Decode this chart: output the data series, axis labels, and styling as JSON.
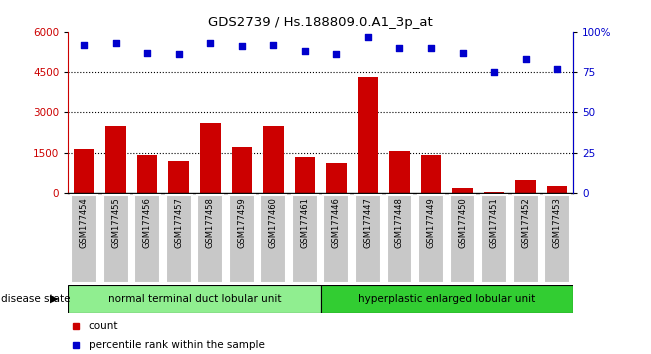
{
  "title": "GDS2739 / Hs.188809.0.A1_3p_at",
  "samples": [
    "GSM177454",
    "GSM177455",
    "GSM177456",
    "GSM177457",
    "GSM177458",
    "GSM177459",
    "GSM177460",
    "GSM177461",
    "GSM177446",
    "GSM177447",
    "GSM177448",
    "GSM177449",
    "GSM177450",
    "GSM177451",
    "GSM177452",
    "GSM177453"
  ],
  "bar_values": [
    1650,
    2500,
    1400,
    1200,
    2600,
    1700,
    2500,
    1350,
    1100,
    4300,
    1550,
    1400,
    200,
    30,
    500,
    250
  ],
  "dot_values": [
    92,
    93,
    87,
    86,
    93,
    91,
    92,
    88,
    86,
    97,
    90,
    90,
    87,
    75,
    83,
    77
  ],
  "bar_color": "#cc0000",
  "dot_color": "#0000cc",
  "ylim_left": [
    0,
    6000
  ],
  "ylim_right": [
    0,
    100
  ],
  "yticks_left": [
    0,
    1500,
    3000,
    4500,
    6000
  ],
  "yticks_right": [
    0,
    25,
    50,
    75,
    100
  ],
  "group1_label": "normal terminal duct lobular unit",
  "group2_label": "hyperplastic enlarged lobular unit",
  "group1_count": 8,
  "group2_count": 8,
  "disease_state_label": "disease state",
  "legend_count": "count",
  "legend_percentile": "percentile rank within the sample",
  "group1_color": "#90ee90",
  "group2_color": "#32cd32",
  "bg_color": "#ffffff",
  "tick_label_color_left": "#cc0000",
  "tick_label_color_right": "#0000cc",
  "cell_bg_color": "#c8c8c8",
  "cell_border_color": "#ffffff",
  "ytick_right_labels": [
    "0",
    "25",
    "50",
    "75",
    "100%"
  ]
}
